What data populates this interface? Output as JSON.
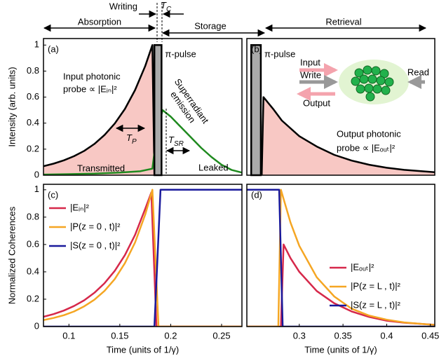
{
  "header": {
    "writing": "Writing",
    "tc": {
      "main": "T",
      "sub": "C"
    },
    "absorption": "Absorption",
    "storage": "Storage",
    "retrieval": "Retrieval"
  },
  "chart_data": [
    {
      "type": "line",
      "panel": "(a)",
      "ylabel": "Intensity (arb. units)",
      "xlim": [
        0.075,
        0.27
      ],
      "ylim": [
        0,
        1.05
      ],
      "yticks": [
        0,
        0.2,
        0.4,
        0.6,
        0.8,
        1
      ],
      "pulse": {
        "label": "π-pulse",
        "start": 0.184,
        "end": 0.191,
        "value": 1
      },
      "series": [
        {
          "color": "#000000",
          "fill": "#f8c8c4",
          "x": [
            0.075,
            0.085,
            0.095,
            0.105,
            0.115,
            0.125,
            0.135,
            0.145,
            0.155,
            0.165,
            0.175,
            0.182,
            0.184
          ],
          "values": [
            0.069,
            0.089,
            0.114,
            0.146,
            0.187,
            0.24,
            0.309,
            0.397,
            0.509,
            0.654,
            0.839,
            1,
            0
          ]
        },
        {
          "color": "#1f8a1f",
          "x": [
            0.075,
            0.1,
            0.125,
            0.15,
            0.17,
            0.182,
            0.186,
            0.192,
            0.2,
            0.21,
            0.22,
            0.23,
            0.24,
            0.25,
            0.26,
            0.27
          ],
          "values": [
            0.005,
            0.008,
            0.012,
            0.02,
            0.03,
            0.05,
            0.3,
            0.5,
            0.45,
            0.37,
            0.29,
            0.21,
            0.14,
            0.08,
            0.04,
            0.02
          ]
        }
      ],
      "annotations": {
        "probe": [
          "Input photonic",
          "probe ∝ |Eᵢₙ|²"
        ],
        "emission": [
          "Superradiant",
          "emission"
        ],
        "transmitted": "Transmitted",
        "leaked": "Leaked",
        "tp": {
          "main": "T",
          "sub": "P"
        },
        "tsr": {
          "main": "T",
          "sub": "SR"
        }
      }
    },
    {
      "type": "line",
      "panel": "(b)",
      "xlim": [
        0.24,
        0.455
      ],
      "ylim": [
        0,
        1.05
      ],
      "pulse": {
        "label": "π-pulse",
        "start": 0.245,
        "end": 0.256,
        "value": 1
      },
      "series": [
        {
          "color": "#000000",
          "fill": "#f8c8c4",
          "x": [
            0.257,
            0.259,
            0.27,
            0.28,
            0.3,
            0.32,
            0.34,
            0.36,
            0.38,
            0.4,
            0.42,
            0.455
          ],
          "values": [
            0,
            0.6,
            0.51,
            0.42,
            0.3,
            0.22,
            0.156,
            0.112,
            0.08,
            0.057,
            0.041,
            0.023
          ]
        }
      ],
      "annotations": {
        "probe": [
          "Output photonic",
          "probe ∝ |Eₒᵤₜ|²"
        ]
      },
      "diagram": {
        "input": "Input",
        "write": "Write",
        "output": "Output",
        "read": "Read"
      }
    },
    {
      "type": "line",
      "panel": "(c)",
      "ylabel": "Normalized Coherences",
      "xlabel": "Time (units of 1/γ)",
      "xlim": [
        0.075,
        0.27
      ],
      "ylim": [
        0,
        1.04
      ],
      "xticks": [
        0.1,
        0.15,
        0.2,
        0.25
      ],
      "yticks": [
        0,
        0.2,
        0.4,
        0.6,
        0.8,
        1
      ],
      "legend": "upper left",
      "series": [
        {
          "name": "|Eᵢₙ|²",
          "color": "#d6284a",
          "x": [
            0.075,
            0.085,
            0.095,
            0.105,
            0.115,
            0.125,
            0.135,
            0.145,
            0.155,
            0.165,
            0.175,
            0.181,
            0.186,
            0.27
          ],
          "values": [
            0.071,
            0.091,
            0.117,
            0.15,
            0.192,
            0.247,
            0.317,
            0.407,
            0.522,
            0.67,
            0.861,
            0.98,
            0,
            0
          ]
        },
        {
          "name": "|P(z = 0 , t)|²",
          "color": "#f5a623",
          "x": [
            0.075,
            0.085,
            0.095,
            0.105,
            0.115,
            0.125,
            0.135,
            0.145,
            0.155,
            0.165,
            0.175,
            0.182,
            0.188,
            0.27
          ],
          "values": [
            0.047,
            0.063,
            0.083,
            0.11,
            0.148,
            0.196,
            0.261,
            0.347,
            0.463,
            0.615,
            0.819,
            1,
            0,
            0
          ]
        },
        {
          "name": "|S(z = 0 , t)|²",
          "color": "#1a1a9c",
          "x": [
            0.075,
            0.184,
            0.19,
            0.27
          ],
          "values": [
            0,
            0,
            1,
            1
          ]
        }
      ]
    },
    {
      "type": "line",
      "panel": "(d)",
      "xlabel": "Time (units of 1/γ)",
      "xlim": [
        0.24,
        0.455
      ],
      "ylim": [
        0,
        1.04
      ],
      "xticks": [
        0.3,
        0.35,
        0.4,
        0.45
      ],
      "legend": "lower right",
      "series": [
        {
          "name": "|Eₒᵤₜ|²",
          "color": "#d6284a",
          "x": [
            0.24,
            0.279,
            0.282,
            0.29,
            0.3,
            0.32,
            0.34,
            0.36,
            0.38,
            0.4,
            0.42,
            0.455
          ],
          "values": [
            0,
            0,
            0.6,
            0.5,
            0.4,
            0.26,
            0.17,
            0.11,
            0.07,
            0.043,
            0.028,
            0.013
          ]
        },
        {
          "name": "|P(z = L , t)|²",
          "color": "#f5a623",
          "x": [
            0.24,
            0.276,
            0.279,
            0.29,
            0.3,
            0.32,
            0.34,
            0.36,
            0.38,
            0.4,
            0.42,
            0.455
          ],
          "values": [
            0,
            0,
            1,
            0.76,
            0.59,
            0.36,
            0.22,
            0.13,
            0.08,
            0.05,
            0.03,
            0.012
          ]
        },
        {
          "name": "|S(z = L , t)|²",
          "color": "#1a1a9c",
          "x": [
            0.24,
            0.277,
            0.281,
            0.455
          ],
          "values": [
            1,
            1,
            0,
            0
          ]
        }
      ]
    }
  ]
}
